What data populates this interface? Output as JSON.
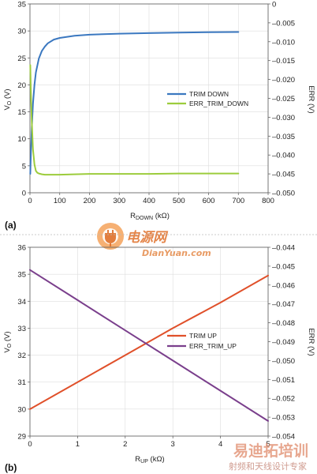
{
  "panels": [
    {
      "label": "(a)",
      "y_left_label": {
        "main": "V",
        "sub": "O",
        "rest": " (V)"
      },
      "y_right_label": "ERR (V)",
      "x_label": {
        "main": "R",
        "sub": "DOWN",
        "rest": " (kΩ)"
      },
      "x_ticks": [
        "0",
        "100",
        "200",
        "300",
        "400",
        "500",
        "600",
        "700",
        "800"
      ],
      "y_left_ticks": [
        "0",
        "5",
        "10",
        "15",
        "20",
        "25",
        "30",
        "35"
      ],
      "y_right_ticks": [
        "0",
        "–0.005",
        "–0.010",
        "–0.015",
        "–0.020",
        "–0.025",
        "–0.030",
        "–0.035",
        "–0.040",
        "–0.045",
        "–0.050"
      ],
      "legend": [
        {
          "name": "TRIM DOWN",
          "color": "#3b78c0"
        },
        {
          "name": "ERR_TRIM_DOWN",
          "color": "#9ccc3c"
        }
      ]
    },
    {
      "label": "(b)",
      "y_left_label": {
        "main": "V",
        "sub": "O",
        "rest": " (V)"
      },
      "y_right_label": "ERR (V)",
      "x_label": {
        "main": "R",
        "sub": "UP",
        "rest": " (kΩ)"
      },
      "x_ticks": [
        "0",
        "1",
        "2",
        "3",
        "4",
        "5"
      ],
      "y_left_ticks": [
        "29",
        "30",
        "31",
        "32",
        "33",
        "34",
        "35",
        "36"
      ],
      "y_right_ticks": [
        "–0.044",
        "–0.045",
        "–0.046",
        "–0.047",
        "–0.048",
        "–0.049",
        "–0.050",
        "–0.051",
        "–0.052",
        "–0.053",
        "–0.054"
      ],
      "legend": [
        {
          "name": "TRIM UP",
          "color": "#e0502a"
        },
        {
          "name": "ERR_TRIM_UP",
          "color": "#7a3f8c"
        }
      ]
    }
  ],
  "watermarks": {
    "top_cn": "电源网",
    "top_url": "DianYuan.com",
    "bottom_cn": "易迪拓培训",
    "bottom_sub": "射频和天线设计专家"
  },
  "chart_data": [
    {
      "type": "line",
      "xlabel": "RDOWN (kΩ)",
      "ylabel": "VO (V)",
      "y2label": "ERR (V)",
      "xlim": [
        0,
        800
      ],
      "ylim": [
        0,
        35
      ],
      "y2lim": [
        -0.05,
        0
      ],
      "grid": true,
      "legend_position": "right-middle",
      "series": [
        {
          "name": "TRIM DOWN",
          "axis": "left",
          "color": "#3b78c0",
          "x": [
            1,
            3,
            6,
            10,
            15,
            20,
            30,
            40,
            50,
            60,
            80,
            100,
            150,
            200,
            300,
            400,
            500,
            600,
            700
          ],
          "y": [
            3.5,
            7.0,
            12.0,
            16.5,
            20.0,
            22.3,
            24.9,
            26.3,
            27.1,
            27.7,
            28.4,
            28.7,
            29.1,
            29.3,
            29.5,
            29.6,
            29.7,
            29.75,
            29.8
          ]
        },
        {
          "name": "ERR_TRIM_DOWN",
          "axis": "right",
          "color": "#9ccc3c",
          "x": [
            1,
            3,
            6,
            10,
            15,
            20,
            25,
            30,
            40,
            50,
            60,
            80,
            100,
            150,
            200,
            300,
            400,
            500,
            600,
            700
          ],
          "y": [
            -0.0162,
            -0.023,
            -0.031,
            -0.0385,
            -0.0425,
            -0.0442,
            -0.0447,
            -0.0449,
            -0.0451,
            -0.0452,
            -0.0452,
            -0.0452,
            -0.0452,
            -0.0451,
            -0.045,
            -0.045,
            -0.045,
            -0.0449,
            -0.0449,
            -0.0449
          ]
        }
      ]
    },
    {
      "type": "line",
      "xlabel": "RUP (kΩ)",
      "ylabel": "VO (V)",
      "y2label": "ERR (V)",
      "xlim": [
        0,
        5
      ],
      "ylim": [
        29,
        36
      ],
      "y2lim": [
        -0.054,
        -0.044
      ],
      "grid": true,
      "legend_position": "right-middle",
      "series": [
        {
          "name": "TRIM UP",
          "axis": "left",
          "color": "#e0502a",
          "x": [
            0,
            1,
            2,
            3,
            4,
            5
          ],
          "y": [
            30.0,
            31.0,
            32.0,
            33.0,
            33.95,
            34.95
          ]
        },
        {
          "name": "ERR_TRIM_UP",
          "axis": "right",
          "color": "#7a3f8c",
          "x": [
            0,
            1,
            2,
            3,
            4,
            5
          ],
          "y": [
            -0.0452,
            -0.0468,
            -0.0484,
            -0.05,
            -0.0516,
            -0.0532
          ]
        }
      ]
    }
  ]
}
